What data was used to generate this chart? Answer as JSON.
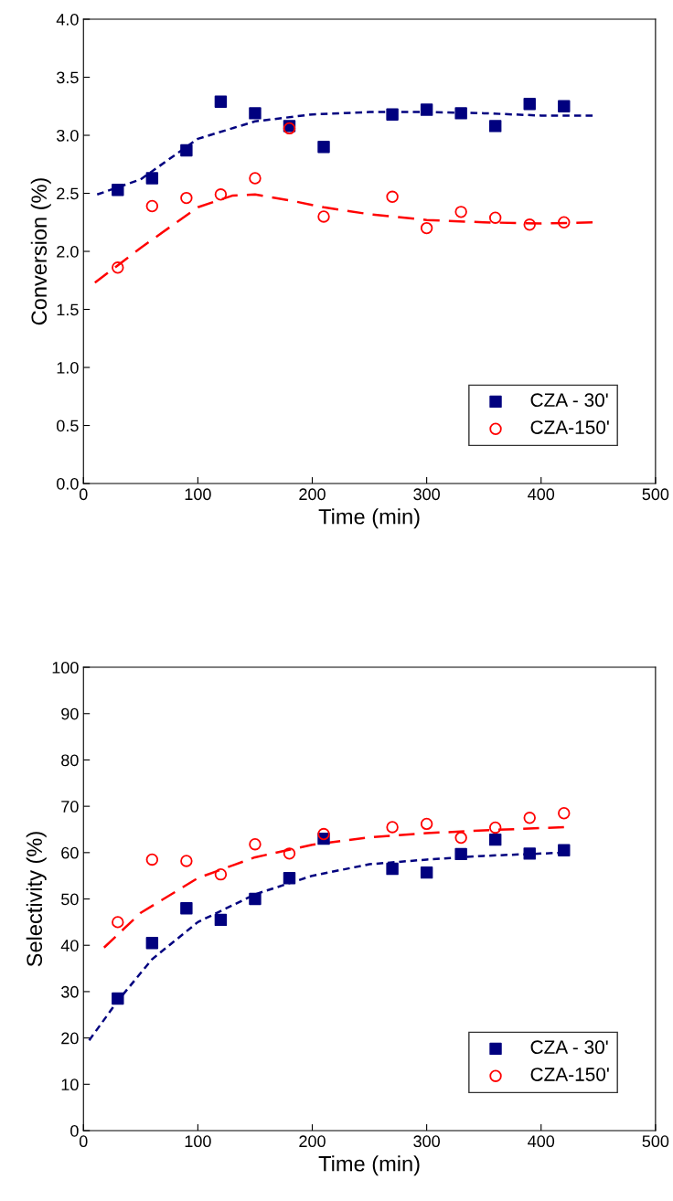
{
  "chart_data": [
    {
      "type": "scatter",
      "xlabel": "Time (min)",
      "ylabel": "Conversion (%)",
      "xlim": [
        0,
        500
      ],
      "xticks": [
        0,
        100,
        200,
        300,
        400,
        500
      ],
      "ylim": [
        0,
        4.0
      ],
      "yticks": [
        {
          "value": 0,
          "label": "0.0"
        },
        0.5,
        {
          "value": 1,
          "label": "1.0"
        },
        1.5,
        {
          "value": 2,
          "label": "2.0"
        },
        2.5,
        {
          "value": 3,
          "label": "3.0"
        },
        3.5,
        {
          "value": 4,
          "label": "4.0"
        }
      ],
      "grid": false,
      "legend": "bottom right",
      "x": [
        30,
        60,
        90,
        120,
        150,
        180,
        210,
        270,
        300,
        330,
        360,
        390,
        420
      ],
      "series": [
        {
          "name": "CZA - 30'",
          "color": "#00007f",
          "marker": "square",
          "values": [
            2.53,
            2.63,
            2.87,
            3.29,
            3.19,
            3.08,
            2.9,
            3.18,
            3.22,
            3.19,
            3.08,
            3.27,
            3.25
          ]
        },
        {
          "name": "CZA-150'",
          "color": "#ff0000",
          "marker": "circle",
          "values": [
            1.86,
            2.39,
            2.46,
            2.49,
            2.63,
            3.06,
            2.3,
            2.47,
            2.2,
            2.34,
            2.29,
            2.23,
            2.25
          ]
        },
        {
          "type": "line",
          "color": "#00007f",
          "line_style": "dotted",
          "x": [
            12,
            50,
            100,
            150,
            200,
            250,
            300,
            350,
            400,
            445
          ],
          "values": [
            2.49,
            2.62,
            2.97,
            3.12,
            3.18,
            3.2,
            3.2,
            3.19,
            3.17,
            3.17
          ]
        },
        {
          "type": "line",
          "color": "#ff0000",
          "line_style": "dashed",
          "x": [
            10,
            50,
            100,
            130,
            150,
            180,
            210,
            250,
            300,
            350,
            400,
            445
          ],
          "values": [
            1.73,
            2.03,
            2.38,
            2.48,
            2.49,
            2.44,
            2.38,
            2.32,
            2.27,
            2.25,
            2.24,
            2.25
          ]
        }
      ]
    },
    {
      "type": "scatter",
      "xlabel": "Time (min)",
      "ylabel": "Selectivity (%)",
      "xlim": [
        0,
        500
      ],
      "xticks": [
        0,
        100,
        200,
        300,
        400,
        500
      ],
      "ylim": [
        0,
        100
      ],
      "yticks": [
        0,
        10,
        20,
        30,
        40,
        50,
        60,
        70,
        80,
        90,
        100
      ],
      "grid": false,
      "legend": "bottom right",
      "x": [
        30,
        60,
        90,
        120,
        150,
        180,
        210,
        270,
        300,
        330,
        360,
        390,
        420
      ],
      "series": [
        {
          "name": "CZA - 30'",
          "color": "#00007f",
          "marker": "square",
          "values": [
            28.5,
            40.5,
            48,
            45.5,
            50,
            54.5,
            63,
            56.5,
            55.7,
            59.7,
            62.8,
            59.8,
            60.5
          ]
        },
        {
          "name": "CZA-150'",
          "color": "#ff0000",
          "marker": "circle",
          "values": [
            45,
            58.5,
            58.2,
            55.3,
            61.8,
            59.8,
            64,
            65.5,
            66.2,
            63.2,
            65.4,
            67.5,
            68.5
          ]
        },
        {
          "type": "line",
          "color": "#00007f",
          "line_style": "dotted",
          "x": [
            5,
            30,
            60,
            100,
            150,
            200,
            250,
            300,
            350,
            420
          ],
          "values": [
            19.5,
            28,
            37,
            45,
            51,
            55,
            57.5,
            58.5,
            59.3,
            60
          ]
        },
        {
          "type": "line",
          "color": "#ff0000",
          "line_style": "dashed",
          "x": [
            18,
            50,
            100,
            150,
            200,
            250,
            300,
            350,
            420
          ],
          "values": [
            39.5,
            47,
            54.5,
            59,
            61.7,
            63.3,
            64.2,
            64.8,
            65.5
          ]
        }
      ]
    }
  ]
}
